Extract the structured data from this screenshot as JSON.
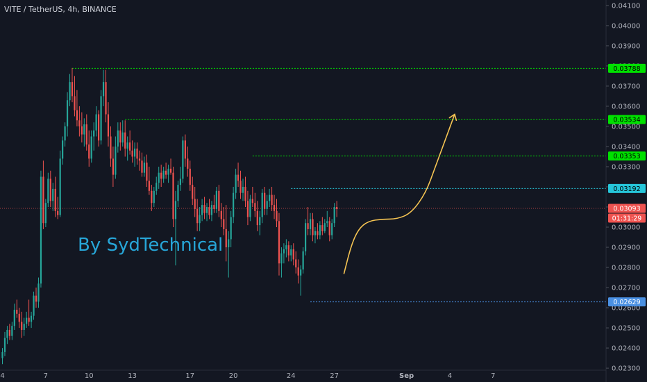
{
  "header": {
    "title": "VITE / TetherUS, 4h, BINANCE"
  },
  "watermark": {
    "text": "By SydTechnical",
    "color": "#27a6d8"
  },
  "colors": {
    "background": "#131722",
    "up": "#26a69a",
    "down": "#ef5350",
    "axis_text": "#b2b5be",
    "green_level": "#00e000",
    "cyan_level": "#26c6da",
    "blue_level": "#4a90e2",
    "current_price": "#ef5350",
    "projection": "#f5c453"
  },
  "chart_data": {
    "type": "candlestick",
    "title": "VITE / TetherUS, 4h, BINANCE",
    "ylim": [
      0.0229,
      0.0411
    ],
    "y_ticks": [
      "0.04100",
      "0.04000",
      "0.03900",
      "0.03800",
      "0.03700",
      "0.03600",
      "0.03500",
      "0.03400",
      "0.03300",
      "0.03200",
      "0.03100",
      "0.03000",
      "0.02900",
      "0.02800",
      "0.02700",
      "0.02600",
      "0.02500",
      "0.02400",
      "0.02300"
    ],
    "x_ticks": [
      {
        "label": "4",
        "bar": 0
      },
      {
        "label": "7",
        "bar": 18
      },
      {
        "label": "10",
        "bar": 36
      },
      {
        "label": "13",
        "bar": 54
      },
      {
        "label": "17",
        "bar": 78
      },
      {
        "label": "20",
        "bar": 96
      },
      {
        "label": "24",
        "bar": 120
      },
      {
        "label": "27",
        "bar": 138
      },
      {
        "label": "Sep",
        "bar": 168
      },
      {
        "label": "4",
        "bar": 186
      },
      {
        "label": "7",
        "bar": 204
      }
    ],
    "levels": [
      {
        "value": 0.03788,
        "label": "0.03788",
        "color": "#00e000",
        "from_bar": 29
      },
      {
        "value": 0.03534,
        "label": "0.03534",
        "color": "#00e000",
        "from_bar": 51
      },
      {
        "value": 0.03353,
        "label": "0.03353",
        "color": "#00e000",
        "from_bar": 104
      },
      {
        "value": 0.03192,
        "label": "0.03192",
        "color": "#26c6da",
        "from_bar": 120
      },
      {
        "value": 0.02629,
        "label": "0.02629",
        "color": "#4a90e2",
        "from_bar": 128
      }
    ],
    "current_price": {
      "value": 0.03093,
      "label": "0.03093",
      "countdown": "01:31:29"
    },
    "projection": [
      [
        142,
        0.0277
      ],
      [
        145,
        0.0291
      ],
      [
        148,
        0.0299
      ],
      [
        152,
        0.0303
      ],
      [
        158,
        0.0304
      ],
      [
        164,
        0.0304
      ],
      [
        170,
        0.0307
      ],
      [
        176,
        0.0317
      ],
      [
        180,
        0.033
      ],
      [
        184,
        0.0343
      ],
      [
        188,
        0.0356
      ]
    ],
    "candles": [
      [
        0.0235,
        0.024,
        0.0232,
        0.0238
      ],
      [
        0.0238,
        0.0248,
        0.0236,
        0.0245
      ],
      [
        0.0245,
        0.0251,
        0.0242,
        0.0249
      ],
      [
        0.0249,
        0.0252,
        0.0244,
        0.0246
      ],
      [
        0.0246,
        0.0253,
        0.0244,
        0.0251
      ],
      [
        0.0251,
        0.0262,
        0.0249,
        0.0259
      ],
      [
        0.0259,
        0.0264,
        0.0255,
        0.0257
      ],
      [
        0.0257,
        0.026,
        0.025,
        0.0253
      ],
      [
        0.0253,
        0.0258,
        0.0245,
        0.0249
      ],
      [
        0.0249,
        0.0255,
        0.0246,
        0.0252
      ],
      [
        0.0252,
        0.0258,
        0.025,
        0.0255
      ],
      [
        0.0255,
        0.0264,
        0.0251,
        0.0253
      ],
      [
        0.0253,
        0.0258,
        0.025,
        0.0256
      ],
      [
        0.0256,
        0.0268,
        0.0254,
        0.0266
      ],
      [
        0.0266,
        0.027,
        0.026,
        0.0263
      ],
      [
        0.0263,
        0.0275,
        0.026,
        0.0272
      ],
      [
        0.0272,
        0.0328,
        0.027,
        0.0325
      ],
      [
        0.0325,
        0.0333,
        0.0299,
        0.0302
      ],
      [
        0.0302,
        0.0314,
        0.03,
        0.0312
      ],
      [
        0.0312,
        0.0327,
        0.031,
        0.0324
      ],
      [
        0.0324,
        0.0328,
        0.031,
        0.0313
      ],
      [
        0.0313,
        0.0322,
        0.0308,
        0.0319
      ],
      [
        0.0319,
        0.0325,
        0.0305,
        0.0308
      ],
      [
        0.0308,
        0.0315,
        0.0304,
        0.0306
      ],
      [
        0.0306,
        0.0338,
        0.0305,
        0.0334
      ],
      [
        0.0334,
        0.0345,
        0.0331,
        0.0343
      ],
      [
        0.0343,
        0.0352,
        0.034,
        0.035
      ],
      [
        0.035,
        0.0367,
        0.0345,
        0.0363
      ],
      [
        0.0363,
        0.0376,
        0.036,
        0.0372
      ],
      [
        0.0372,
        0.0379,
        0.0362,
        0.0365
      ],
      [
        0.0365,
        0.0375,
        0.0355,
        0.0358
      ],
      [
        0.0358,
        0.0368,
        0.035,
        0.0353
      ],
      [
        0.0353,
        0.036,
        0.0345,
        0.035
      ],
      [
        0.035,
        0.0357,
        0.0342,
        0.0346
      ],
      [
        0.0346,
        0.0354,
        0.034,
        0.0351
      ],
      [
        0.0351,
        0.0356,
        0.0338,
        0.0341
      ],
      [
        0.0341,
        0.0348,
        0.033,
        0.0334
      ],
      [
        0.0334,
        0.0348,
        0.0332,
        0.0345
      ],
      [
        0.0345,
        0.0352,
        0.0338,
        0.0348
      ],
      [
        0.0348,
        0.036,
        0.0345,
        0.0356
      ],
      [
        0.0356,
        0.0358,
        0.034,
        0.0343
      ],
      [
        0.0343,
        0.0368,
        0.0341,
        0.0365
      ],
      [
        0.0365,
        0.0378,
        0.036,
        0.0372
      ],
      [
        0.0372,
        0.0378,
        0.0352,
        0.0356
      ],
      [
        0.0356,
        0.0362,
        0.034,
        0.0345
      ],
      [
        0.0345,
        0.035,
        0.033,
        0.0334
      ],
      [
        0.0334,
        0.034,
        0.032,
        0.0326
      ],
      [
        0.0326,
        0.0345,
        0.0324,
        0.034
      ],
      [
        0.034,
        0.0352,
        0.0337,
        0.0348
      ],
      [
        0.0348,
        0.0352,
        0.0338,
        0.0342
      ],
      [
        0.0342,
        0.0353,
        0.034,
        0.0347
      ],
      [
        0.0347,
        0.0353,
        0.0335,
        0.0339
      ],
      [
        0.0339,
        0.0345,
        0.0333,
        0.0342
      ],
      [
        0.0342,
        0.0348,
        0.0336,
        0.0338
      ],
      [
        0.0338,
        0.0343,
        0.0332,
        0.0335
      ],
      [
        0.0335,
        0.0342,
        0.033,
        0.0339
      ],
      [
        0.0339,
        0.0342,
        0.0331,
        0.0334
      ],
      [
        0.0334,
        0.0338,
        0.0328,
        0.0333
      ],
      [
        0.0333,
        0.0337,
        0.0325,
        0.0327
      ],
      [
        0.0327,
        0.0335,
        0.0325,
        0.0332
      ],
      [
        0.0332,
        0.0336,
        0.032,
        0.0323
      ],
      [
        0.0323,
        0.033,
        0.0316,
        0.0318
      ],
      [
        0.0318,
        0.0321,
        0.0308,
        0.0312
      ],
      [
        0.0312,
        0.032,
        0.031,
        0.0318
      ],
      [
        0.0318,
        0.0325,
        0.0316,
        0.0322
      ],
      [
        0.0322,
        0.033,
        0.0319,
        0.0327
      ],
      [
        0.0327,
        0.0331,
        0.032,
        0.0324
      ],
      [
        0.0324,
        0.033,
        0.0322,
        0.0328
      ],
      [
        0.0328,
        0.0332,
        0.0324,
        0.0326
      ],
      [
        0.0326,
        0.0331,
        0.0322,
        0.0329
      ],
      [
        0.0329,
        0.0334,
        0.0326,
        0.0327
      ],
      [
        0.0327,
        0.033,
        0.03,
        0.0304
      ],
      [
        0.0304,
        0.0318,
        0.0281,
        0.0313
      ],
      [
        0.0313,
        0.0323,
        0.031,
        0.0321
      ],
      [
        0.0321,
        0.033,
        0.0318,
        0.0324
      ],
      [
        0.0324,
        0.0345,
        0.0322,
        0.0343
      ],
      [
        0.0343,
        0.0346,
        0.033,
        0.0334
      ],
      [
        0.0334,
        0.034,
        0.0325,
        0.0329
      ],
      [
        0.0329,
        0.0333,
        0.0318,
        0.0321
      ],
      [
        0.0321,
        0.0325,
        0.0311,
        0.0314
      ],
      [
        0.0314,
        0.032,
        0.0305,
        0.0309
      ],
      [
        0.0309,
        0.0314,
        0.0298,
        0.0302
      ],
      [
        0.0302,
        0.031,
        0.0298,
        0.0306
      ],
      [
        0.0306,
        0.0314,
        0.0303,
        0.0311
      ],
      [
        0.0311,
        0.0315,
        0.0304,
        0.0307
      ],
      [
        0.0307,
        0.0312,
        0.0303,
        0.031
      ],
      [
        0.031,
        0.0314,
        0.0304,
        0.0306
      ],
      [
        0.0306,
        0.0313,
        0.0303,
        0.0311
      ],
      [
        0.0311,
        0.0316,
        0.0307,
        0.0309
      ],
      [
        0.0309,
        0.032,
        0.0307,
        0.0318
      ],
      [
        0.0318,
        0.0321,
        0.0305,
        0.0308
      ],
      [
        0.0308,
        0.0312,
        0.03,
        0.0304
      ],
      [
        0.0304,
        0.031,
        0.0296,
        0.0299
      ],
      [
        0.0299,
        0.0311,
        0.0283,
        0.029
      ],
      [
        0.029,
        0.0298,
        0.0275,
        0.0294
      ],
      [
        0.0294,
        0.0308,
        0.029,
        0.0305
      ],
      [
        0.0305,
        0.032,
        0.0302,
        0.0317
      ],
      [
        0.0317,
        0.0329,
        0.0314,
        0.0326
      ],
      [
        0.0326,
        0.0332,
        0.032,
        0.0323
      ],
      [
        0.0323,
        0.0328,
        0.0314,
        0.0317
      ],
      [
        0.0317,
        0.0324,
        0.0313,
        0.032
      ],
      [
        0.032,
        0.0325,
        0.031,
        0.0313
      ],
      [
        0.0313,
        0.0318,
        0.0301,
        0.0305
      ],
      [
        0.0305,
        0.0316,
        0.0303,
        0.0314
      ],
      [
        0.0314,
        0.032,
        0.031,
        0.0312
      ],
      [
        0.0312,
        0.0317,
        0.0305,
        0.0308
      ],
      [
        0.0308,
        0.0313,
        0.0298,
        0.0301
      ],
      [
        0.0301,
        0.0308,
        0.0296,
        0.0305
      ],
      [
        0.0305,
        0.0319,
        0.0302,
        0.0317
      ],
      [
        0.0317,
        0.032,
        0.0306,
        0.0309
      ],
      [
        0.0309,
        0.0316,
        0.0306,
        0.0313
      ],
      [
        0.0313,
        0.0319,
        0.031,
        0.0316
      ],
      [
        0.0316,
        0.032,
        0.0308,
        0.0311
      ],
      [
        0.0311,
        0.0316,
        0.0304,
        0.0308
      ],
      [
        0.0308,
        0.0314,
        0.03,
        0.0303
      ],
      [
        0.0303,
        0.0307,
        0.0276,
        0.0282
      ],
      [
        0.0282,
        0.029,
        0.0275,
        0.0287
      ],
      [
        0.0287,
        0.0292,
        0.0282,
        0.0289
      ],
      [
        0.0289,
        0.0294,
        0.0285,
        0.0291
      ],
      [
        0.0291,
        0.0293,
        0.0283,
        0.0286
      ],
      [
        0.0286,
        0.0291,
        0.0283,
        0.0289
      ],
      [
        0.0289,
        0.0292,
        0.0281,
        0.0284
      ],
      [
        0.0284,
        0.0288,
        0.0277,
        0.028
      ],
      [
        0.028,
        0.0284,
        0.0272,
        0.0276
      ],
      [
        0.0276,
        0.0281,
        0.0266,
        0.0279
      ],
      [
        0.0279,
        0.029,
        0.0277,
        0.0288
      ],
      [
        0.0288,
        0.0304,
        0.0286,
        0.0302
      ],
      [
        0.0302,
        0.031,
        0.0296,
        0.0299
      ],
      [
        0.0299,
        0.0307,
        0.0296,
        0.0304
      ],
      [
        0.0304,
        0.0307,
        0.0293,
        0.0296
      ],
      [
        0.0296,
        0.03,
        0.0292,
        0.0298
      ],
      [
        0.0298,
        0.0302,
        0.0294,
        0.0296
      ],
      [
        0.0296,
        0.0303,
        0.0294,
        0.0301
      ],
      [
        0.0301,
        0.0305,
        0.0296,
        0.0298
      ],
      [
        0.0298,
        0.0304,
        0.0297,
        0.0302
      ],
      [
        0.0302,
        0.0308,
        0.03,
        0.0303
      ],
      [
        0.0303,
        0.0305,
        0.0293,
        0.0296
      ],
      [
        0.0296,
        0.0304,
        0.0294,
        0.0302
      ],
      [
        0.0302,
        0.0312,
        0.03,
        0.031
      ],
      [
        0.031,
        0.0313,
        0.0305,
        0.0309
      ]
    ]
  }
}
